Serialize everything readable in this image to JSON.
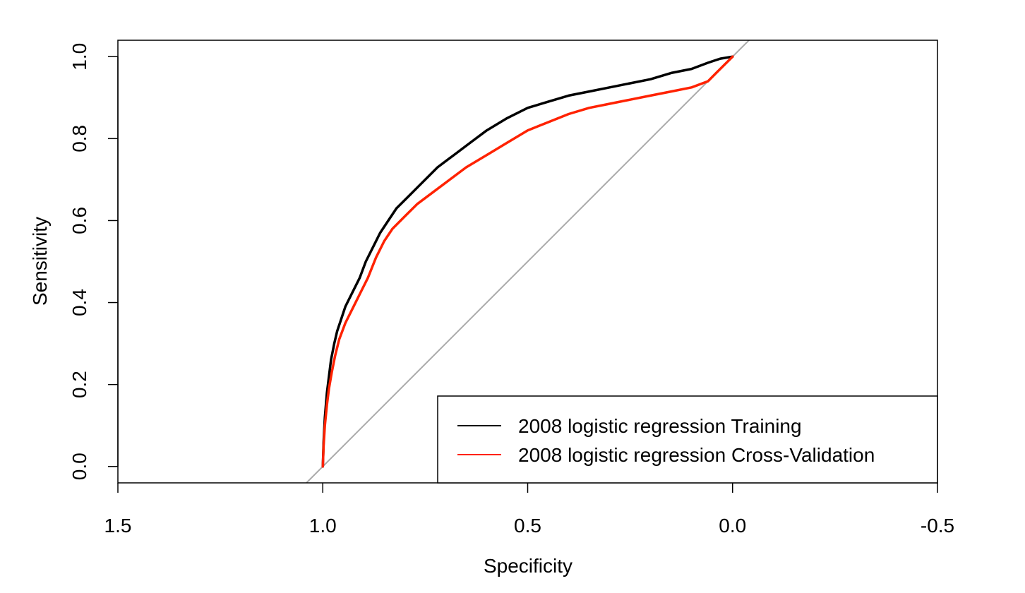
{
  "chart_data": {
    "type": "line",
    "title": "",
    "xlabel": "Specificity",
    "ylabel": "Sensitivity",
    "x_reversed": true,
    "xlim": [
      1.5,
      -0.5
    ],
    "ylim": [
      -0.04,
      1.04
    ],
    "x_ticks": [
      {
        "value": 1.5,
        "label": "1.5"
      },
      {
        "value": 1.0,
        "label": "1.0"
      },
      {
        "value": 0.5,
        "label": "0.5"
      },
      {
        "value": 0.0,
        "label": "0.0"
      },
      {
        "value": -0.5,
        "label": "-0.5"
      }
    ],
    "y_ticks": [
      {
        "value": 0.0,
        "label": "0.0"
      },
      {
        "value": 0.2,
        "label": "0.2"
      },
      {
        "value": 0.4,
        "label": "0.4"
      },
      {
        "value": 0.6,
        "label": "0.6"
      },
      {
        "value": 0.8,
        "label": "0.8"
      },
      {
        "value": 1.0,
        "label": "1.0"
      }
    ],
    "grid": false,
    "legend_position": "bottom-right",
    "reference_line": {
      "color": "#aaaaaa",
      "x": [
        1.0,
        0.0
      ],
      "y": [
        0.0,
        1.0
      ]
    },
    "series": [
      {
        "name": "2008 logistic regression Training",
        "color": "#000000",
        "x": [
          1.0,
          0.998,
          0.995,
          0.99,
          0.985,
          0.98,
          0.972,
          0.965,
          0.955,
          0.945,
          0.93,
          0.91,
          0.895,
          0.875,
          0.86,
          0.84,
          0.82,
          0.79,
          0.76,
          0.72,
          0.68,
          0.64,
          0.6,
          0.55,
          0.5,
          0.45,
          0.4,
          0.35,
          0.3,
          0.25,
          0.2,
          0.15,
          0.1,
          0.06,
          0.03,
          0.0
        ],
        "y": [
          0.0,
          0.06,
          0.12,
          0.18,
          0.22,
          0.26,
          0.3,
          0.33,
          0.36,
          0.39,
          0.42,
          0.46,
          0.5,
          0.54,
          0.57,
          0.6,
          0.63,
          0.66,
          0.69,
          0.73,
          0.76,
          0.79,
          0.82,
          0.85,
          0.875,
          0.89,
          0.905,
          0.915,
          0.925,
          0.935,
          0.945,
          0.96,
          0.97,
          0.985,
          0.995,
          1.0
        ]
      },
      {
        "name": "2008 logistic regression Cross-Validation",
        "color": "#ff2200",
        "x": [
          1.0,
          0.998,
          0.995,
          0.99,
          0.985,
          0.978,
          0.97,
          0.96,
          0.945,
          0.93,
          0.91,
          0.89,
          0.87,
          0.85,
          0.83,
          0.8,
          0.77,
          0.73,
          0.69,
          0.65,
          0.6,
          0.55,
          0.5,
          0.45,
          0.4,
          0.35,
          0.3,
          0.25,
          0.2,
          0.15,
          0.1,
          0.06,
          0.03,
          0.0
        ],
        "y": [
          0.0,
          0.05,
          0.1,
          0.15,
          0.19,
          0.23,
          0.27,
          0.31,
          0.35,
          0.38,
          0.42,
          0.46,
          0.51,
          0.55,
          0.58,
          0.61,
          0.64,
          0.67,
          0.7,
          0.73,
          0.76,
          0.79,
          0.82,
          0.84,
          0.86,
          0.875,
          0.885,
          0.895,
          0.905,
          0.915,
          0.925,
          0.94,
          0.97,
          1.0
        ]
      }
    ]
  }
}
